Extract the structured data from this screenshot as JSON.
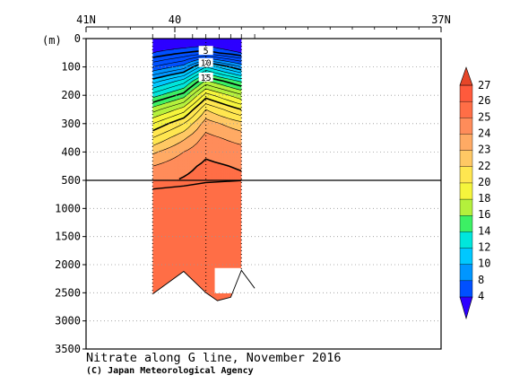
{
  "chart_data": {
    "type": "heatmap",
    "title": "Nitrate along G line, November 2016",
    "credit": "(C) Japan Meteorological Agency",
    "x_axis": {
      "position": "top",
      "range_lat_north": [
        41,
        37
      ],
      "tick_labels": [
        {
          "value": 41,
          "label": "41N"
        },
        {
          "value": 40,
          "label": "40"
        },
        {
          "value": 37,
          "label": "37N"
        }
      ],
      "minor_ticks": [
        40.75,
        40.5,
        40.25,
        39.75,
        39.5,
        39.25,
        39.0,
        38.75,
        38.5,
        38.25,
        38.0,
        37.75,
        37.5,
        37.25
      ]
    },
    "y_axis": {
      "label": "(m)",
      "upper_range": [
        0,
        500
      ],
      "upper_ticks": [
        0,
        100,
        200,
        300,
        400,
        500
      ],
      "lower_range": [
        500,
        3500
      ],
      "lower_ticks": [
        1000,
        1500,
        2000,
        2500,
        3000,
        3500
      ],
      "grid": "dotted"
    },
    "stations_lat": [
      40.25,
      40.0,
      39.8,
      39.65,
      39.5,
      39.37,
      39.25,
      39.1
    ],
    "sampling_profiles": [
      {
        "lat": 40.25,
        "max_depth": 2520
      },
      {
        "lat": 39.65,
        "max_depth": 2500
      },
      {
        "lat": 39.25,
        "max_depth": 2100
      }
    ],
    "section_extent_lat": [
      40.25,
      39.25
    ],
    "bottom_topography": [
      {
        "lat": 40.25,
        "depth": 2520
      },
      {
        "lat": 39.9,
        "depth": 2120
      },
      {
        "lat": 39.65,
        "depth": 2500
      },
      {
        "lat": 39.52,
        "depth": 2640
      },
      {
        "lat": 39.37,
        "depth": 2580
      },
      {
        "lat": 39.25,
        "depth": 2100
      },
      {
        "lat": 39.1,
        "depth": 2420
      }
    ],
    "data_gap": {
      "lat_range": [
        39.55,
        39.25
      ],
      "depth_range": [
        2060,
        2510
      ]
    },
    "contour_levels": [
      4,
      5,
      6,
      7,
      8,
      9,
      10,
      11,
      12,
      13,
      14,
      15,
      16,
      17,
      18,
      19,
      20,
      21,
      22,
      23,
      24,
      25,
      26
    ],
    "bold_levels": [
      5,
      10,
      15,
      20,
      25
    ],
    "contour_labels": [
      {
        "value": 5,
        "label": "5",
        "lat": 39.65
      },
      {
        "value": 10,
        "label": "10",
        "lat": 39.65
      },
      {
        "value": 15,
        "label": "15",
        "lat": 39.65
      }
    ],
    "nitrate_profiles": [
      {
        "lat": 40.25,
        "depth": [
          0,
          50,
          100,
          150,
          200,
          250,
          300,
          350,
          400,
          450,
          500,
          600,
          1000,
          2500
        ],
        "value": [
          2,
          4,
          7,
          10.5,
          13.5,
          16.5,
          19,
          21,
          22.8,
          24,
          24.7,
          25.2,
          25.6,
          25.6
        ]
      },
      {
        "lat": 39.9,
        "depth": [
          0,
          50,
          100,
          150,
          200,
          250,
          300,
          350,
          400,
          450,
          500,
          600,
          1000,
          2500
        ],
        "value": [
          2,
          5,
          8.5,
          12.5,
          15.5,
          18.5,
          21,
          22.8,
          24,
          24.7,
          25.1,
          25.4,
          25.6,
          25.6
        ]
      },
      {
        "lat": 39.65,
        "depth": [
          0,
          50,
          100,
          150,
          200,
          250,
          300,
          350,
          400,
          450,
          500,
          600,
          1000,
          2500
        ],
        "value": [
          2.5,
          5.5,
          12,
          16.2,
          19.5,
          22,
          23.5,
          24.3,
          24.8,
          25.2,
          25.4,
          25.6,
          25.6,
          25.6
        ]
      },
      {
        "lat": 39.25,
        "depth": [
          0,
          50,
          100,
          150,
          200,
          250,
          300,
          350,
          400,
          450,
          500,
          600,
          1000,
          2500
        ],
        "value": [
          1,
          4,
          9,
          13.8,
          17.2,
          20,
          22.3,
          23.6,
          24.4,
          24.9,
          25.2,
          25.5,
          25.6,
          25.6
        ]
      }
    ],
    "colorbar": {
      "levels": [
        4,
        8,
        10,
        12,
        14,
        16,
        18,
        20,
        22,
        23,
        24,
        25,
        26,
        27
      ],
      "colors": [
        "#2d00ff",
        "#0050ff",
        "#0096ff",
        "#00c8ff",
        "#00e6dc",
        "#3cf064",
        "#b4f03c",
        "#f5f53c",
        "#ffe650",
        "#ffc864",
        "#ffaa64",
        "#ff8c5a",
        "#ff6e46",
        "#ff5a3c",
        "#e64628"
      ],
      "tick_labels": [
        "4",
        "8",
        "10",
        "12",
        "14",
        "16",
        "18",
        "20",
        "22",
        "23",
        "24",
        "25",
        "26",
        "27"
      ],
      "extend": "both"
    }
  }
}
